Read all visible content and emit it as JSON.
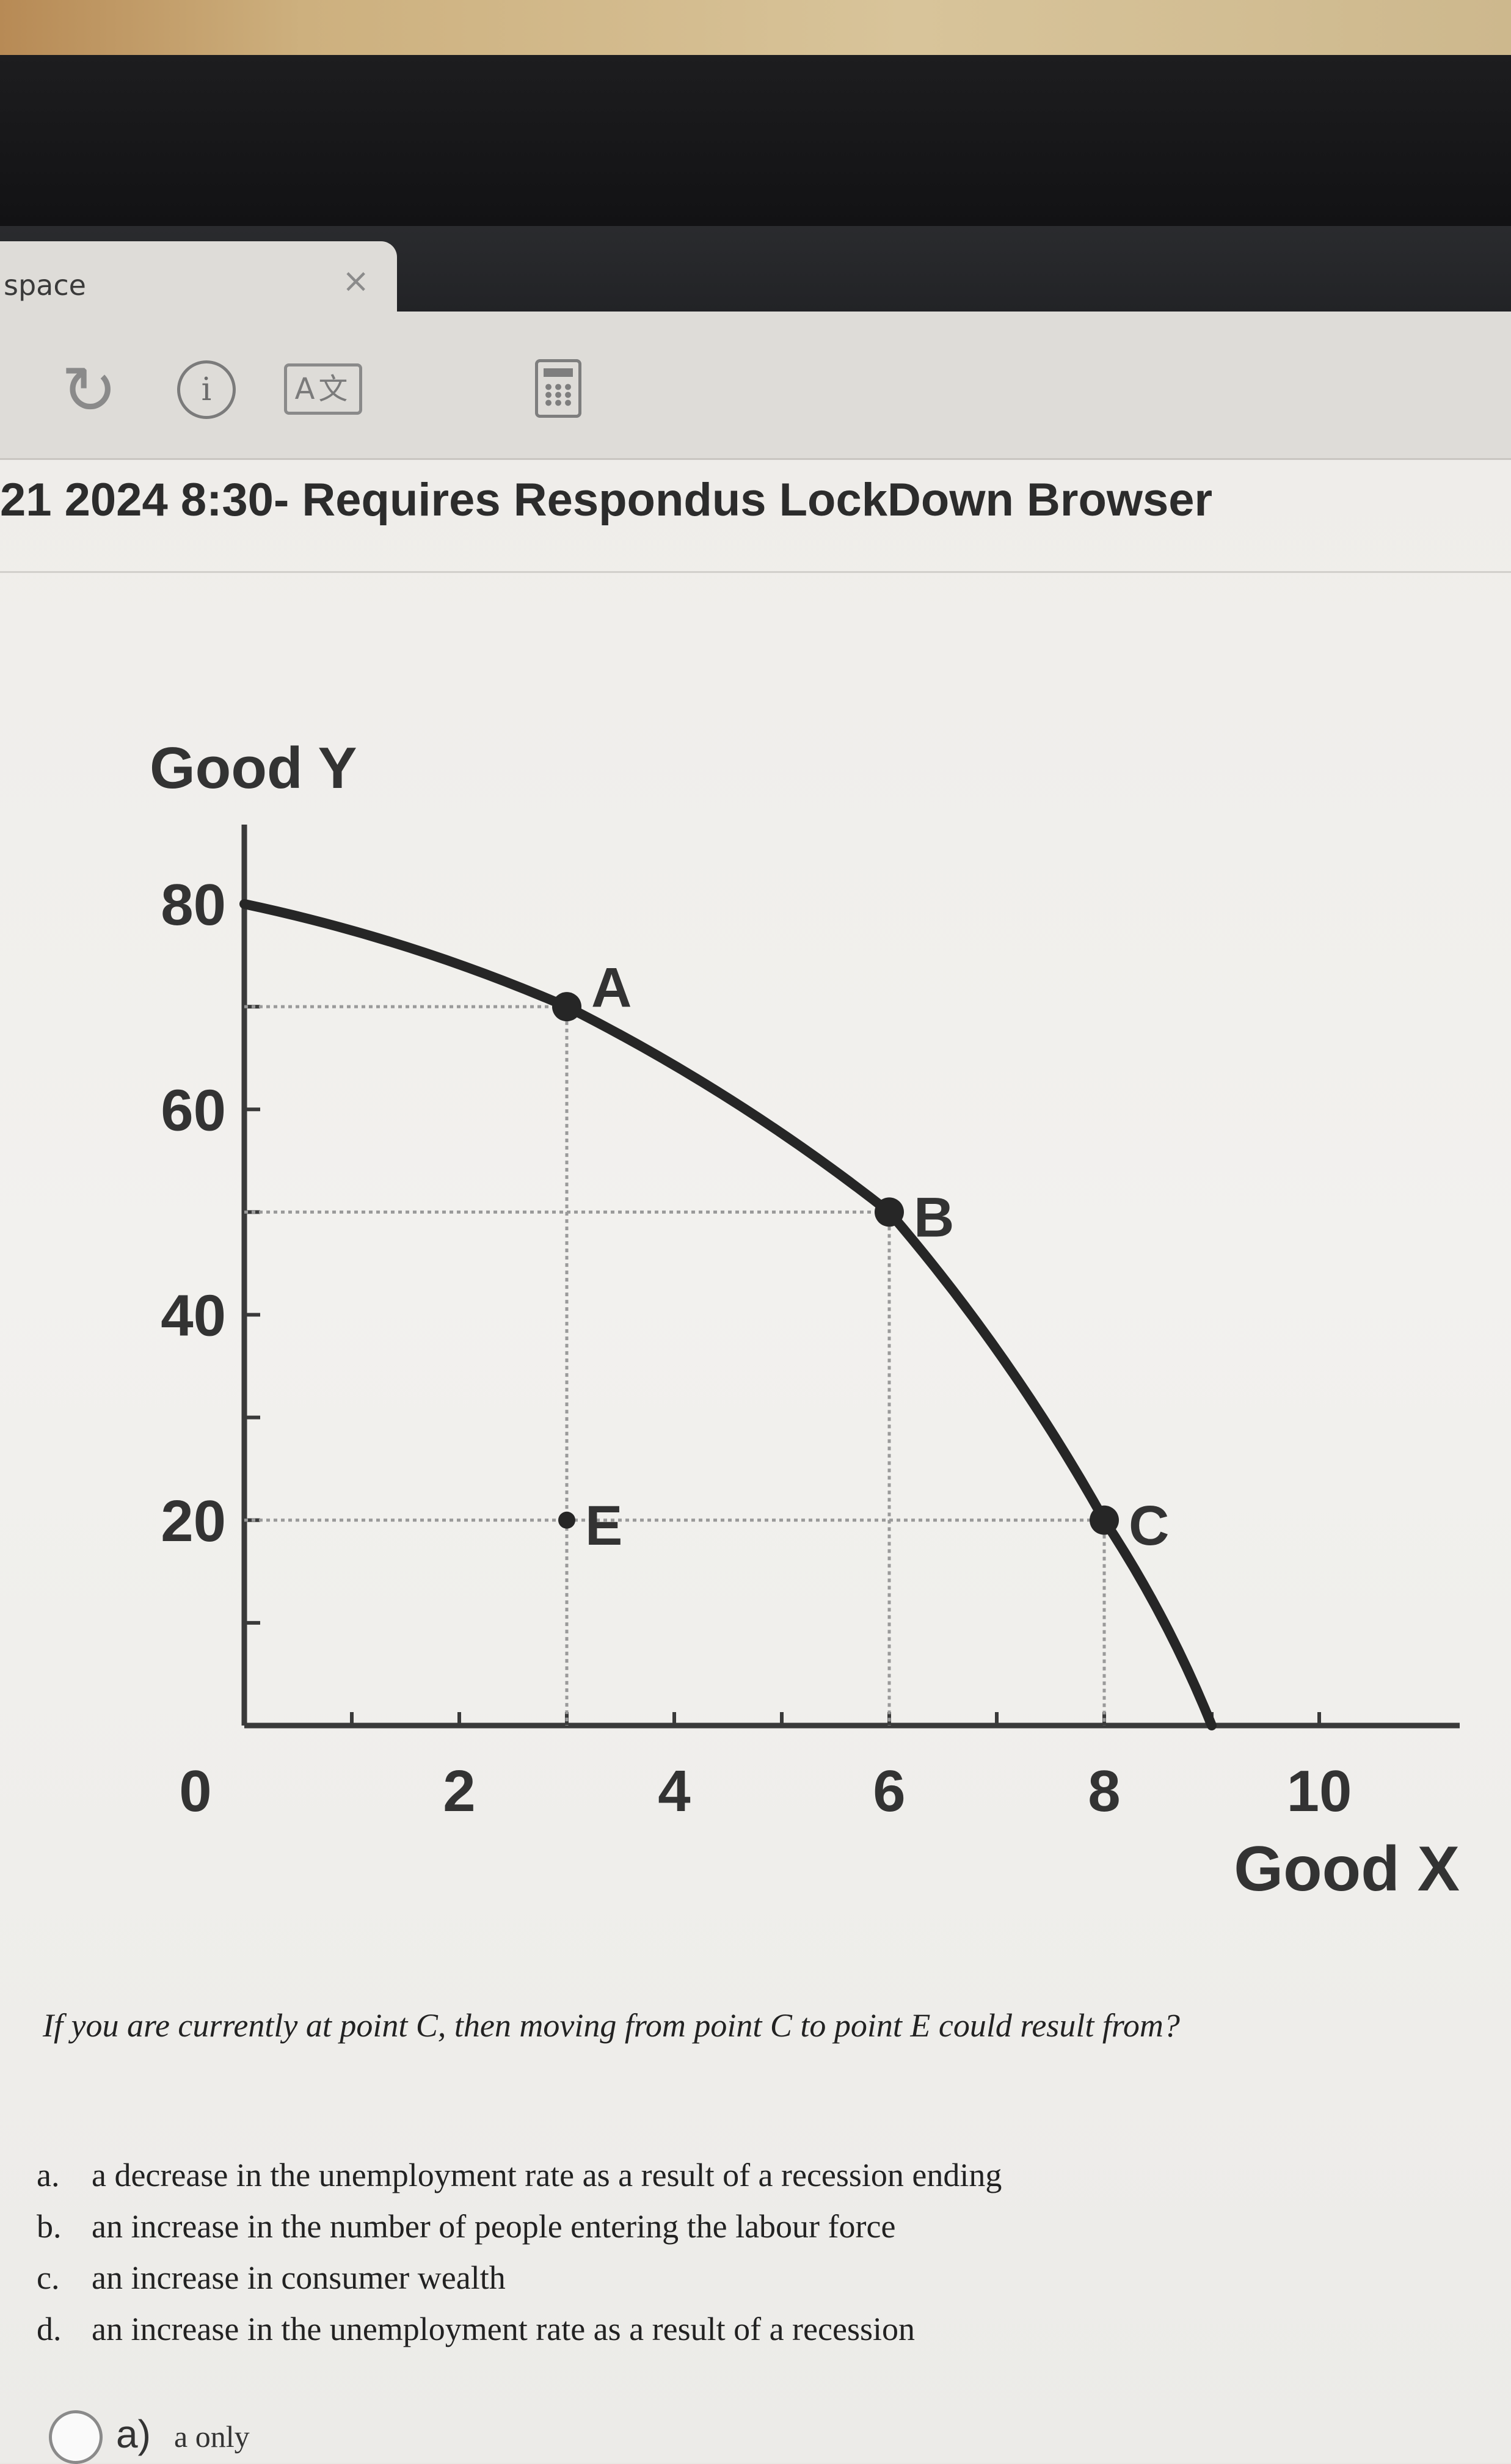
{
  "browser": {
    "tab_title": "space",
    "tab_close": "×",
    "toolbar": {
      "reload_icon": "reload-icon",
      "info_icon": "info-icon",
      "info_glyph": "i",
      "translate_icon": "translate-icon",
      "translate_glyph": "A文",
      "calculator_icon": "calculator-icon"
    }
  },
  "page": {
    "title": "21 2024 8:30- Requires Respondus LockDown Browser"
  },
  "chart_data": {
    "type": "line",
    "xlabel": "Good X",
    "ylabel": "Good Y",
    "xlim": [
      0,
      10
    ],
    "ylim": [
      0,
      80
    ],
    "x_ticks": [
      "0",
      "2",
      "4",
      "6",
      "8",
      "10"
    ],
    "y_ticks": [
      "20",
      "40",
      "60",
      "80"
    ],
    "curve": {
      "x": [
        0,
        3,
        6,
        8,
        9
      ],
      "y": [
        80,
        70,
        50,
        20,
        0
      ]
    },
    "points": [
      {
        "label": "A",
        "x": 3,
        "y": 70
      },
      {
        "label": "B",
        "x": 6,
        "y": 50
      },
      {
        "label": "C",
        "x": 8,
        "y": 20
      },
      {
        "label": "E",
        "x": 3,
        "y": 20
      }
    ]
  },
  "question": {
    "text": "If you are currently at point C, then moving from point C to point E could result from?",
    "options": [
      {
        "letter": "a.",
        "text": "a decrease in the unemployment rate as a result of a recession ending"
      },
      {
        "letter": "b.",
        "text": "an increase in the number of people entering the labour force"
      },
      {
        "letter": "c.",
        "text": "an increase in consumer wealth"
      },
      {
        "letter": "d.",
        "text": "an increase in the unemployment rate as a result of a recession"
      }
    ],
    "answers": [
      {
        "letter": "a)",
        "text": "a only"
      }
    ]
  }
}
